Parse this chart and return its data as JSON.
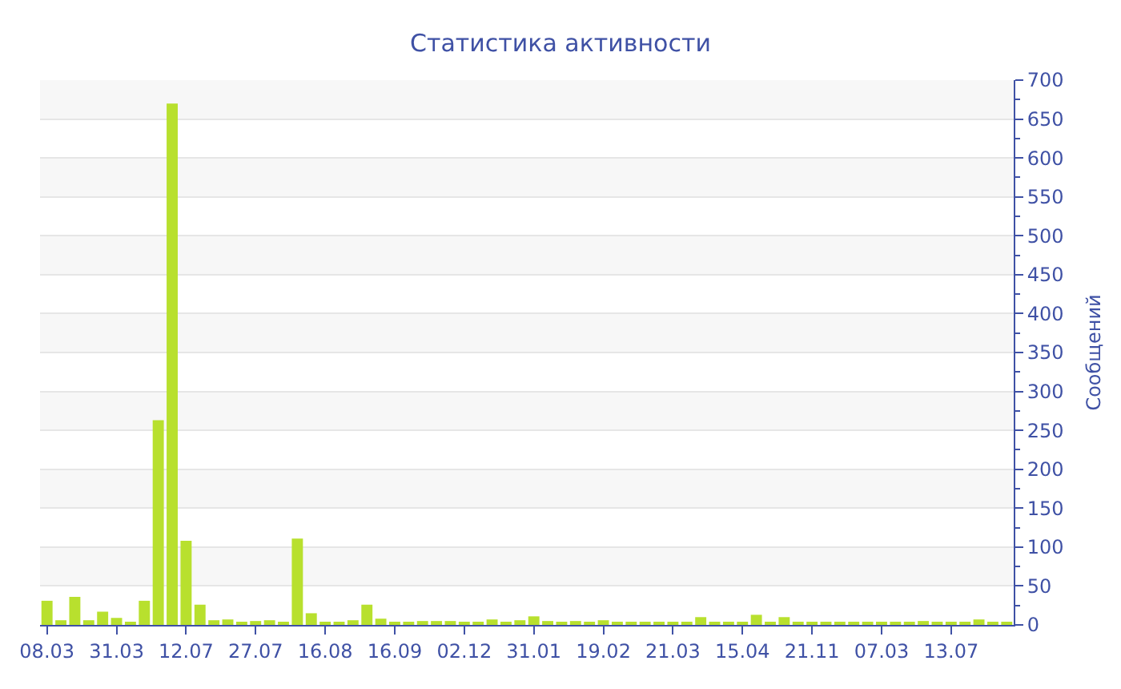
{
  "chart_data": {
    "type": "bar",
    "title": "Статистика активности",
    "ylabel": "Сообщений",
    "categories": [
      "08.03",
      null,
      null,
      null,
      null,
      "31.03",
      null,
      null,
      null,
      null,
      "12.07",
      null,
      null,
      null,
      null,
      "27.07",
      null,
      null,
      null,
      null,
      "16.08",
      null,
      null,
      null,
      null,
      "16.09",
      null,
      null,
      null,
      null,
      "02.12",
      null,
      null,
      null,
      null,
      "31.01",
      null,
      null,
      null,
      null,
      "19.02",
      null,
      null,
      null,
      null,
      "21.03",
      null,
      null,
      null,
      null,
      "15.04",
      null,
      null,
      null,
      null,
      "21.11",
      null,
      null,
      null,
      null,
      "07.03",
      null,
      null,
      null,
      null,
      "13.07",
      null,
      null,
      null,
      null
    ],
    "values": [
      31,
      6,
      36,
      6,
      17,
      9,
      4,
      31,
      263,
      670,
      108,
      26,
      6,
      7,
      4,
      5,
      6,
      4,
      111,
      15,
      4,
      3,
      6,
      26,
      8,
      3,
      3,
      5,
      5,
      5,
      4,
      4,
      7,
      3,
      6,
      11,
      5,
      4,
      5,
      3,
      6,
      4,
      4,
      4,
      3,
      3,
      3,
      10,
      4,
      3,
      3,
      13,
      4,
      10,
      4,
      4,
      4,
      3,
      3,
      3,
      3,
      3,
      3,
      5,
      3,
      3,
      3,
      7,
      3,
      3
    ],
    "color": "#b8e02e",
    "ylim": [
      0,
      700
    ],
    "yticks": [
      0,
      50,
      100,
      150,
      200,
      250,
      300,
      350,
      400,
      450,
      500,
      550,
      600,
      650,
      700
    ],
    "grid": "y"
  }
}
